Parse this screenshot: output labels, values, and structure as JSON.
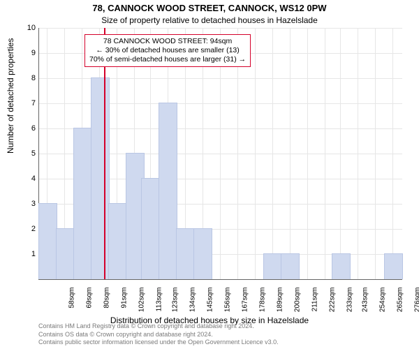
{
  "title_line1": "78, CANNOCK WOOD STREET, CANNOCK, WS12 0PW",
  "title_line2": "Size of property relative to detached houses in Hazelslade",
  "ylabel": "Number of detached properties",
  "xlabel": "Distribution of detached houses by size in Hazelslade",
  "footer_line1": "Contains HM Land Registry data © Crown copyright and database right 2024.",
  "footer_line2": "Contains OS data © Crown copyright and database right 2024.",
  "footer_line3": "Contains public sector information licensed under the Open Government Licence v3.0.",
  "annotation": {
    "line1": "78 CANNOCK WOOD STREET: 94sqm",
    "line2": "← 30% of detached houses are smaller (13)",
    "line3": "70% of semi-detached houses are larger (31) →",
    "border_color": "#d4002a",
    "bg_color": "#ffffff",
    "font_size": 10.5
  },
  "marker_x_value": 94,
  "marker_color": "#d4002a",
  "chart": {
    "type": "histogram",
    "bar_color": "#cfd9ef",
    "bar_border_color": "#b9c6e4",
    "grid_color": "#e6e6e6",
    "background_color": "#ffffff",
    "bar_width_value": 11,
    "xmin": 53,
    "xmax": 282,
    "ymin": 0,
    "ymax": 10,
    "yticks": [
      1,
      2,
      3,
      4,
      5,
      6,
      7,
      8,
      9,
      10
    ],
    "xticks": [
      58,
      69,
      80,
      91,
      102,
      113,
      123,
      134,
      145,
      156,
      167,
      178,
      189,
      200,
      211,
      222,
      233,
      243,
      254,
      265,
      276
    ],
    "xtick_suffix": "sqm",
    "bars": [
      {
        "x": 58,
        "y": 3
      },
      {
        "x": 69,
        "y": 2
      },
      {
        "x": 80,
        "y": 6
      },
      {
        "x": 91,
        "y": 8
      },
      {
        "x": 102,
        "y": 3
      },
      {
        "x": 113,
        "y": 5
      },
      {
        "x": 123,
        "y": 4
      },
      {
        "x": 134,
        "y": 7
      },
      {
        "x": 145,
        "y": 2
      },
      {
        "x": 156,
        "y": 2
      },
      {
        "x": 200,
        "y": 1
      },
      {
        "x": 211,
        "y": 1
      },
      {
        "x": 243,
        "y": 1
      },
      {
        "x": 276,
        "y": 1
      }
    ]
  }
}
